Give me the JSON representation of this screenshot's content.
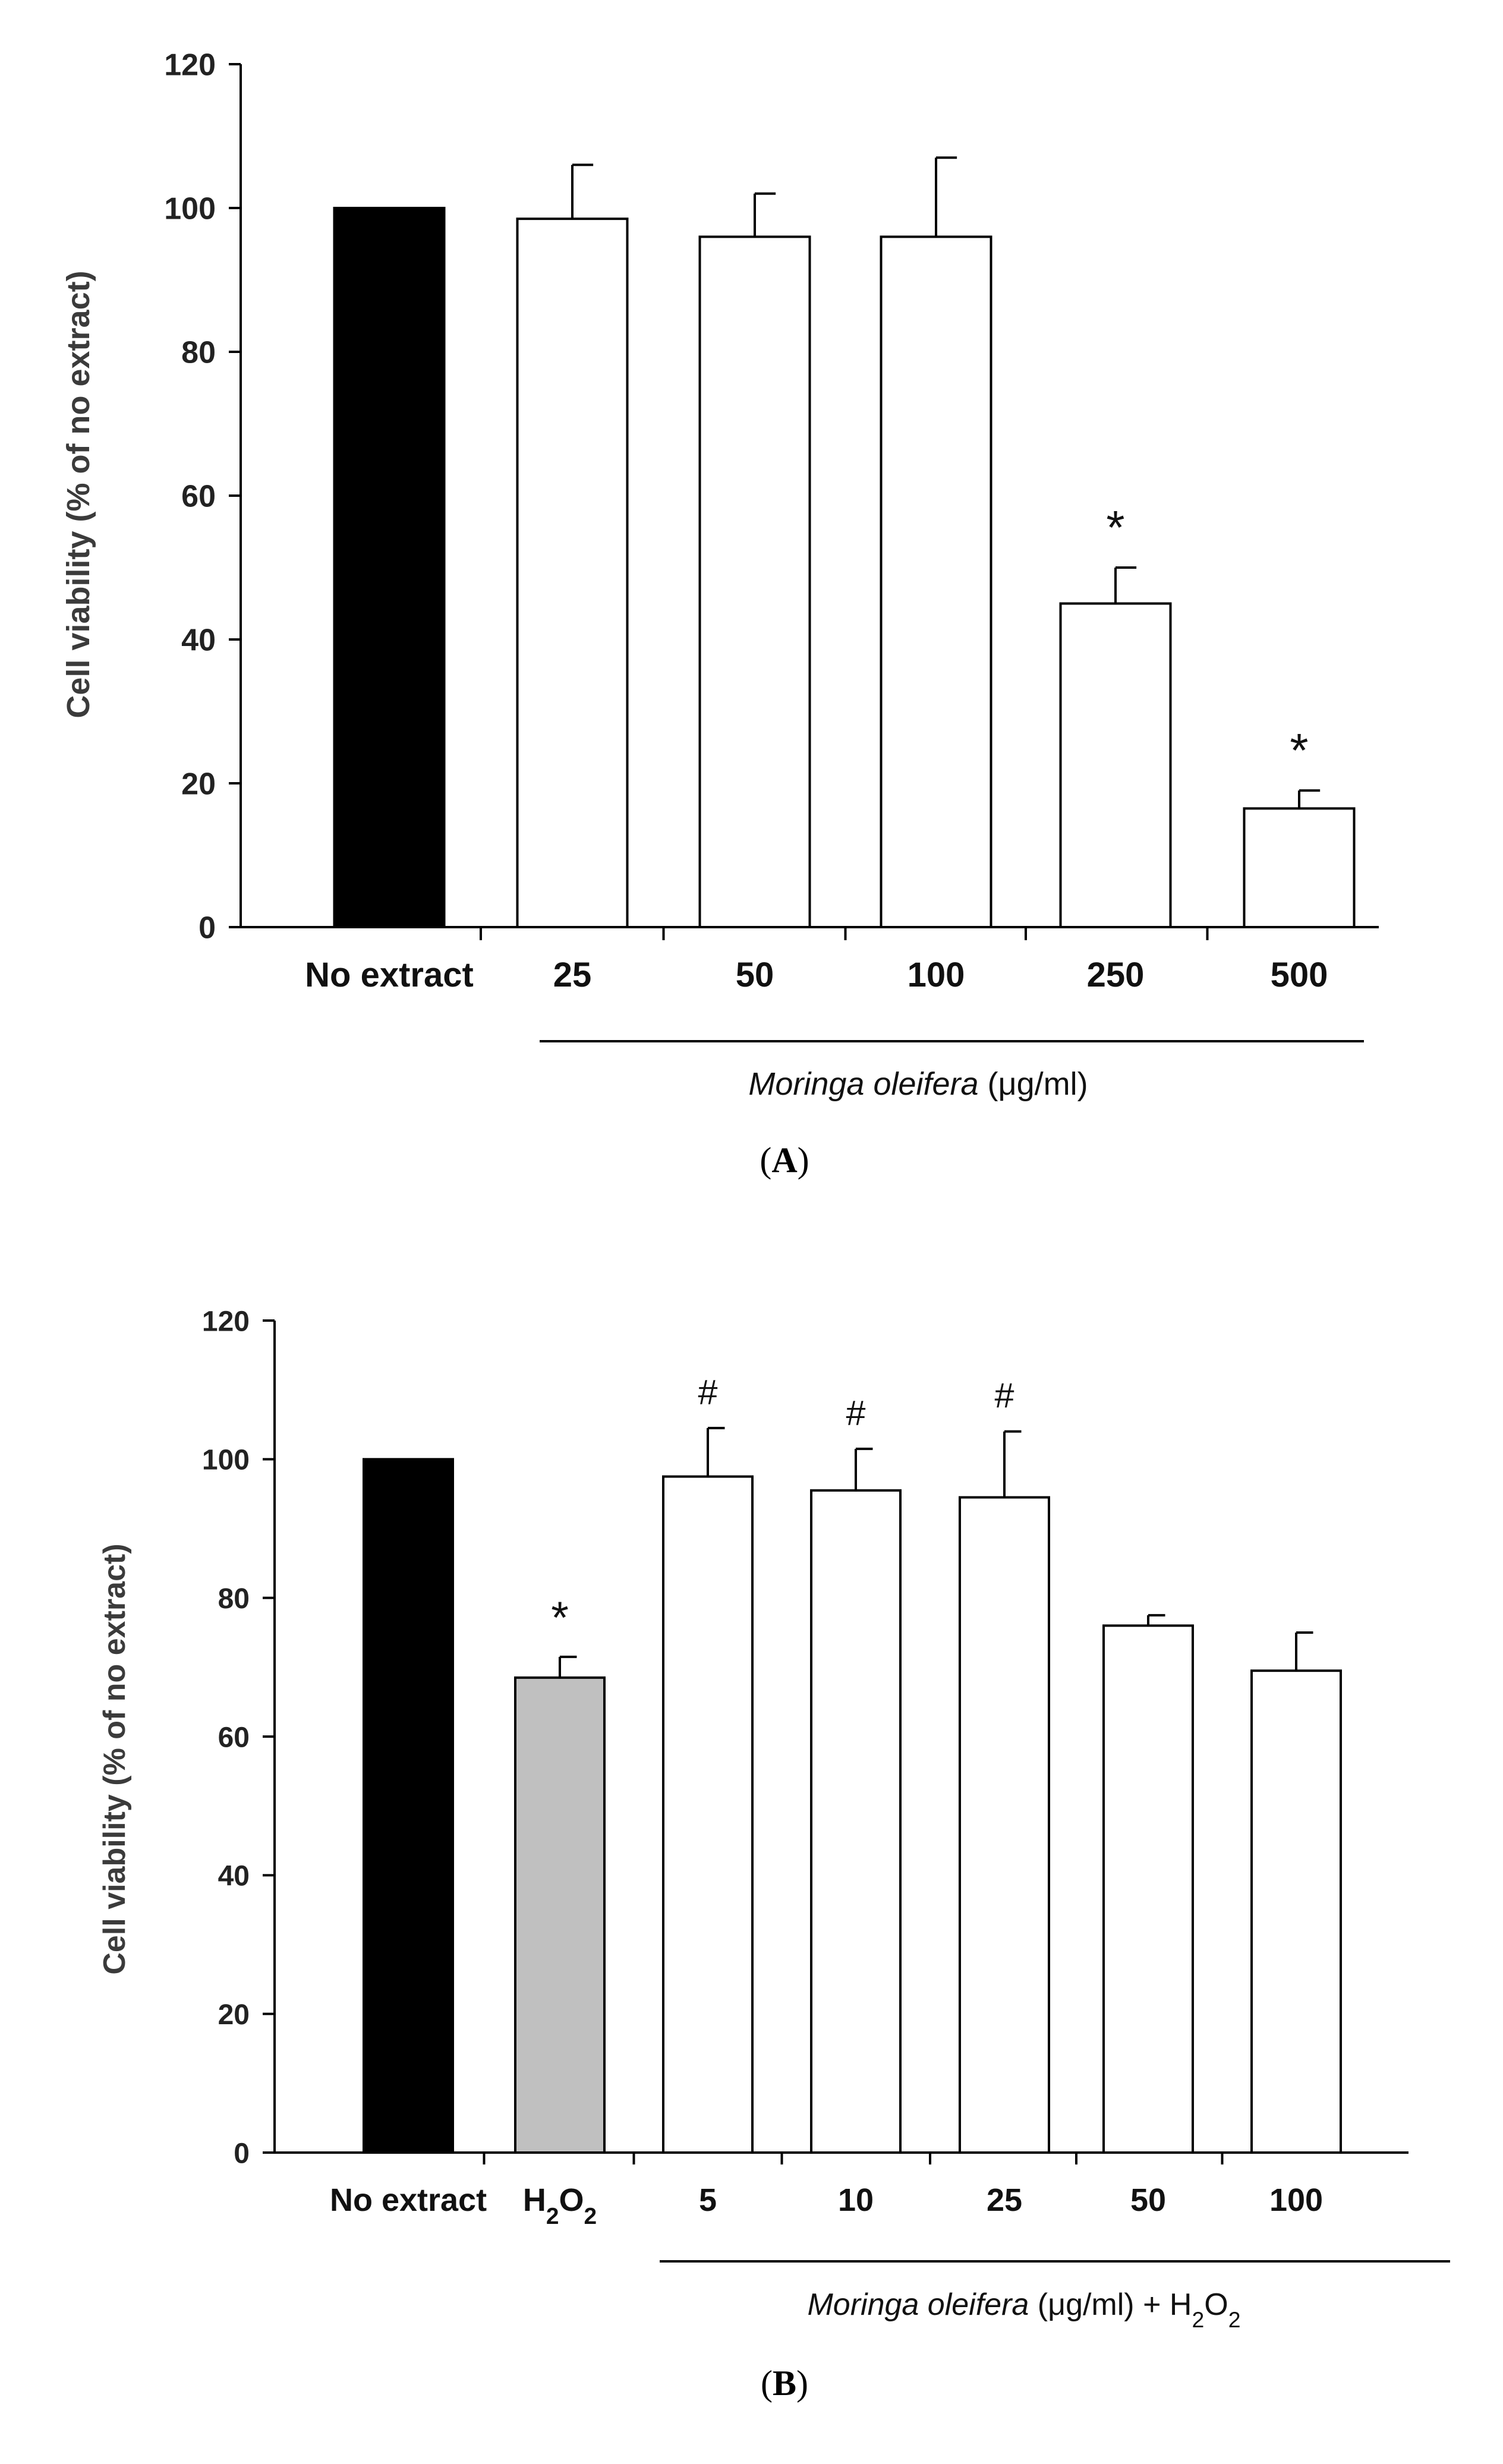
{
  "chart_data": [
    {
      "type": "bar",
      "panel": "A",
      "ylabel": "Cell viability (% of no extract)",
      "ylim": [
        0,
        120
      ],
      "yticks": [
        0,
        20,
        40,
        60,
        80,
        100,
        120
      ],
      "categories": [
        "No extract",
        "25",
        "50",
        "100",
        "250",
        "500"
      ],
      "values": [
        100,
        98.5,
        96,
        96,
        45,
        16.5
      ],
      "errors": [
        0,
        7.5,
        6,
        11,
        5,
        2.5
      ],
      "colors": [
        "#000000",
        "#ffffff",
        "#ffffff",
        "#ffffff",
        "#ffffff",
        "#ffffff"
      ],
      "significance": [
        "",
        "",
        "",
        "",
        "*",
        "*"
      ],
      "group_label": {
        "italic": "Moringa oleifera",
        "rest": " (μg/ml)"
      },
      "group_start": 1,
      "panel_label": "A"
    },
    {
      "type": "bar",
      "panel": "B",
      "ylabel": "Cell viability (% of no extract)",
      "ylim": [
        0,
        120
      ],
      "yticks": [
        0,
        20,
        40,
        60,
        80,
        100,
        120
      ],
      "categories": [
        "No extract",
        "H2O2",
        "5",
        "10",
        "25",
        "50",
        "100"
      ],
      "category_labels": [
        {
          "main": "No extract"
        },
        {
          "main": "H",
          "sub": "2",
          "main2": "O",
          "sub2": "2"
        },
        {
          "main": "5"
        },
        {
          "main": "10"
        },
        {
          "main": "25"
        },
        {
          "main": "50"
        },
        {
          "main": "100"
        }
      ],
      "values": [
        100,
        68.5,
        97.5,
        95.5,
        94.5,
        76,
        69.5
      ],
      "errors": [
        0,
        3,
        7,
        6,
        9.5,
        1.5,
        5.5
      ],
      "colors": [
        "#000000",
        "#c0c0c0",
        "#ffffff",
        "#ffffff",
        "#ffffff",
        "#ffffff",
        "#ffffff"
      ],
      "significance": [
        "",
        "*",
        "#",
        "#",
        "#",
        "",
        ""
      ],
      "group_label": {
        "italic": "Moringa oleifera",
        "rest": " (μg/ml) + H",
        "sub": "2",
        "rest2": "O",
        "sub2": "2"
      },
      "group_start": 2,
      "panel_label": "B"
    }
  ]
}
